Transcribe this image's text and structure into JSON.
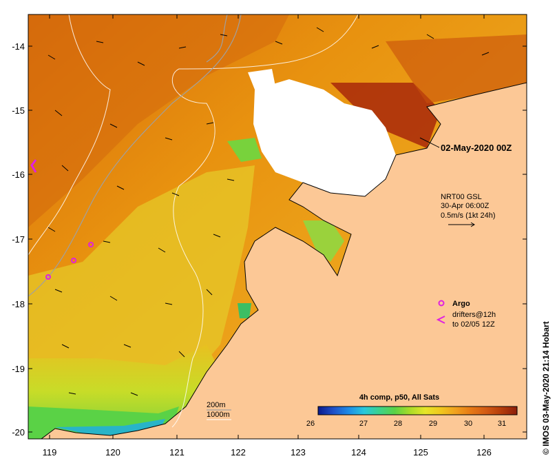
{
  "map": {
    "lon_ticks": [
      "119",
      "120",
      "121",
      "122",
      "123",
      "124",
      "125",
      "126"
    ],
    "lat_ticks": [
      "-14",
      "-15",
      "-16",
      "-17",
      "-18",
      "-19",
      "-20"
    ]
  },
  "annotations": {
    "date": "02-May-2020 00Z",
    "current_legend": [
      "NRT00 GSL",
      "30-Apr 06:00Z",
      "0.5m/s (1kt 24h)"
    ],
    "argo_label": "Argo",
    "drifter_lines": [
      "drifters@12h",
      "to 02/05 12Z"
    ],
    "isobath_200": "200m",
    "isobath_1000": "1000m",
    "credit": "© IMOS 03-May-2020 21:14 Hobart"
  },
  "colorbar": {
    "title": "4h comp, p50, All Sats",
    "ticks": [
      "26",
      "27",
      "28",
      "29",
      "30",
      "31"
    ],
    "colors": [
      "#0a1a8c",
      "#1e50c8",
      "#1e8ce6",
      "#28c8dc",
      "#3cd28c",
      "#5ad246",
      "#aadc28",
      "#e6e628",
      "#f0c81e",
      "#f0a01e",
      "#e67814",
      "#d25a14",
      "#b43c0a",
      "#8c1e0a"
    ]
  }
}
